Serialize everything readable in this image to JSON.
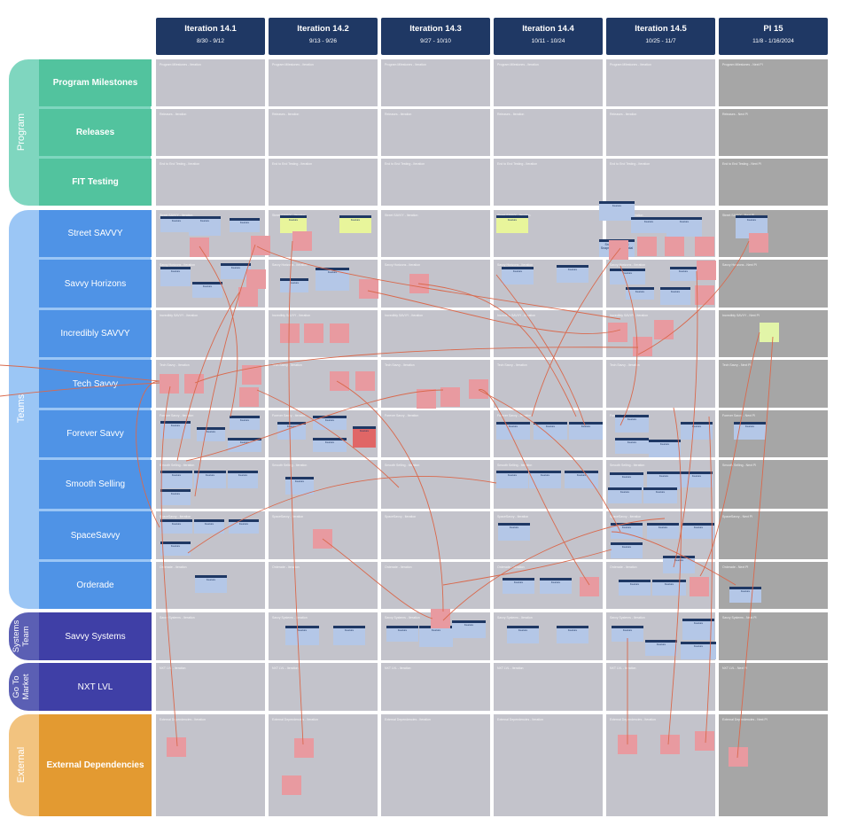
{
  "iterations": [
    {
      "name": "Iteration 14.1",
      "dates": "8/30 - 9/12"
    },
    {
      "name": "Iteration 14.2",
      "dates": "9/13 - 9/26"
    },
    {
      "name": "Iteration 14.3",
      "dates": "9/27 - 10/10"
    },
    {
      "name": "Iteration 14.4",
      "dates": "10/11 - 10/24"
    },
    {
      "name": "Iteration 14.5",
      "dates": "10/25 - 11/7"
    },
    {
      "name": "PI 15",
      "dates": "11/8 - 1/16/2024"
    }
  ],
  "groups": [
    {
      "label": "Program",
      "color": "#7fd6bf"
    },
    {
      "label": "Teams",
      "color": "#9bc6f5"
    },
    {
      "label": "Systems Team",
      "color": "#5b5fb4"
    },
    {
      "label": "Go To Market",
      "color": "#5b5fb4"
    },
    {
      "label": "External",
      "color": "#f2c37f"
    }
  ],
  "rows": [
    {
      "label": "Program Milestones",
      "color": "#52c39e",
      "bold": true,
      "caption": "Program Milestones"
    },
    {
      "label": "Releases",
      "color": "#52c39e",
      "bold": true,
      "caption": "Releases"
    },
    {
      "label": "FIT Testing",
      "color": "#52c39e",
      "bold": true,
      "caption": "End to End Testing"
    },
    {
      "label": "Street SAVVY",
      "color": "#4f93e6",
      "bold": false,
      "caption": "Street SAVVY"
    },
    {
      "label": "Savvy Horizons",
      "color": "#4f93e6",
      "bold": false,
      "caption": "Savvy Horizons"
    },
    {
      "label": "Incredibly SAVVY",
      "color": "#4f93e6",
      "bold": false,
      "caption": "Incredibly SAVVY"
    },
    {
      "label": "Tech Savvy",
      "color": "#4f93e6",
      "bold": false,
      "caption": "Tech Savvy"
    },
    {
      "label": "Forever Savvy",
      "color": "#4f93e6",
      "bold": false,
      "caption": "Forever Savvy"
    },
    {
      "label": "Smooth Selling",
      "color": "#4f93e6",
      "bold": false,
      "caption": "Smooth Selling"
    },
    {
      "label": "SpaceSavvy",
      "color": "#4f93e6",
      "bold": false,
      "caption": "SpaceSavvy"
    },
    {
      "label": "Orderade",
      "color": "#4f93e6",
      "bold": false,
      "caption": "Orderade"
    },
    {
      "label": "Savvy Systems",
      "color": "#3f3fa6",
      "bold": false,
      "caption": "Savvy Systems"
    },
    {
      "label": "NXT LVL",
      "color": "#3f3fa6",
      "bold": false,
      "caption": "NXT LVL"
    },
    {
      "label": "External Dependencies",
      "color": "#e39a31",
      "bold": true,
      "caption": "External Dependencies"
    }
  ],
  "cell_suffix": {
    "iteration": "- Iteration",
    "pi": "- Next PI"
  },
  "notes": {
    "estimate_summary": "Snowshoe Select Snapshot - All Potential",
    "feature_tag": "Feature"
  }
}
